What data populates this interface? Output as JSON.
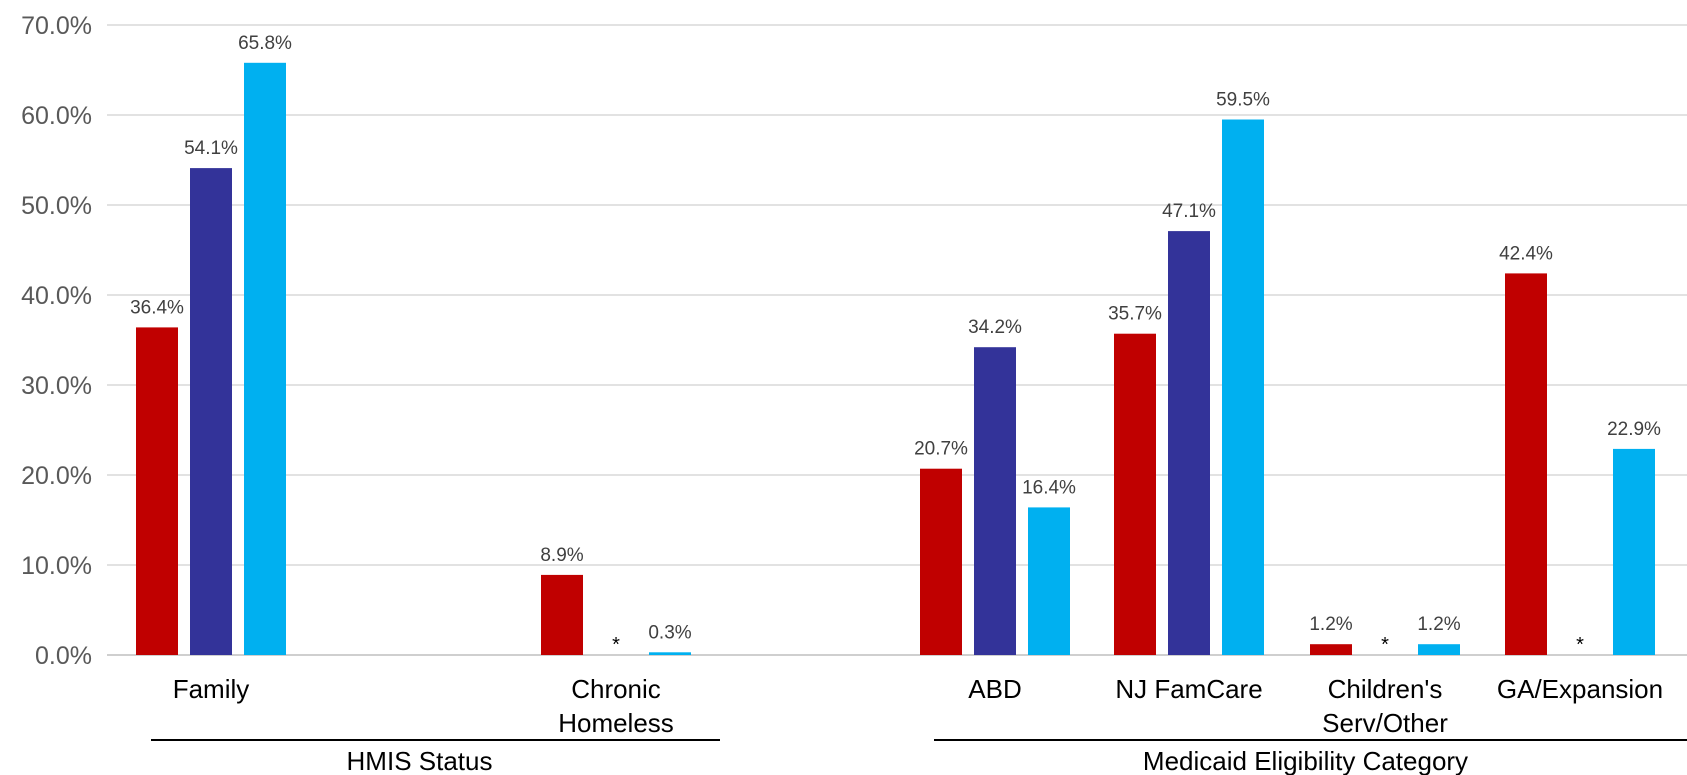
{
  "chart_data": {
    "type": "bar",
    "title": "",
    "xlabel": "",
    "ylabel": "",
    "ylim": [
      0,
      70
    ],
    "yticks": [
      "0.0%",
      "10.0%",
      "20.0%",
      "30.0%",
      "40.0%",
      "50.0%",
      "60.0%",
      "70.0%"
    ],
    "grid": true,
    "legend": "none",
    "category_lines": [
      [
        "Family"
      ],
      [
        "Chronic",
        "Homeless"
      ],
      [
        "ABD"
      ],
      [
        "NJ FamCare"
      ],
      [
        "Children's",
        "Serv/Other"
      ],
      [
        "GA/Expansion"
      ]
    ],
    "groups": [
      {
        "label": "HMIS Status",
        "first": 0,
        "last": 1
      },
      {
        "label": "Medicaid Eligibility Category",
        "first": 2,
        "last": 5
      }
    ],
    "series": [
      {
        "color": "#C00000",
        "values": [
          36.4,
          8.9,
          20.7,
          35.7,
          1.2,
          42.4
        ],
        "labels": [
          "36.4%",
          "8.9%",
          "20.7%",
          "35.7%",
          "1.2%",
          "42.4%"
        ]
      },
      {
        "color": "#333399",
        "values": [
          54.1,
          null,
          34.2,
          47.1,
          null,
          null
        ],
        "labels": [
          "54.1%",
          "*",
          "34.2%",
          "47.1%",
          "*",
          "*"
        ]
      },
      {
        "color": "#00B0F0",
        "values": [
          65.8,
          0.3,
          16.4,
          59.5,
          1.2,
          22.9
        ],
        "labels": [
          "65.8%",
          "0.3%",
          "16.4%",
          "59.5%",
          "1.2%",
          "22.9%"
        ]
      }
    ]
  }
}
